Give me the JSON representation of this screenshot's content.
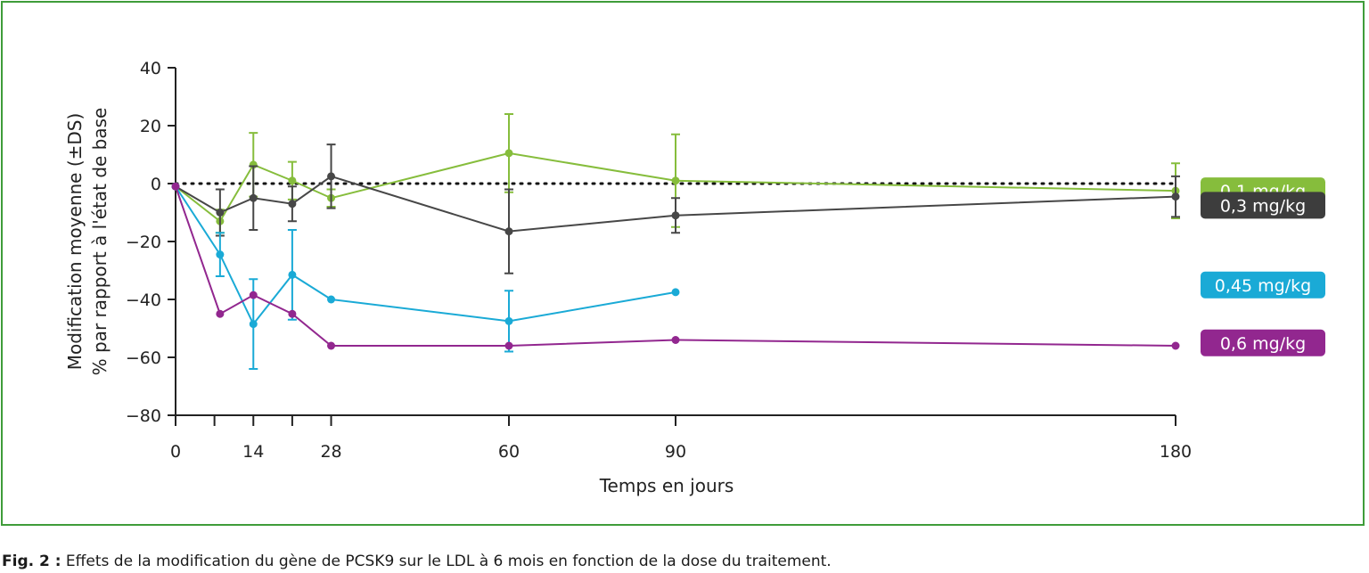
{
  "chart_data": {
    "type": "line",
    "xlabel": "Temps en jours",
    "ylabel": [
      "Modification moyenne (±DS)",
      "% par rapport à l'état de base"
    ],
    "xlim": [
      0,
      180
    ],
    "ylim": [
      -80,
      40
    ],
    "y_ticks": [
      40,
      20,
      0,
      -20,
      -40,
      -60,
      -80
    ],
    "x_ticks_all": [
      0,
      7,
      14,
      21,
      28,
      60,
      90,
      180
    ],
    "x_tick_labels": [
      {
        "x": 0,
        "label": "0"
      },
      {
        "x": 14,
        "label": "14"
      },
      {
        "x": 28,
        "label": "28"
      },
      {
        "x": 60,
        "label": "60"
      },
      {
        "x": 90,
        "label": "90"
      },
      {
        "x": 180,
        "label": "180"
      }
    ],
    "reference_line": {
      "y": 0,
      "style": "dotted"
    },
    "legend_placement": "right",
    "series": [
      {
        "name": "0,1 mg/kg",
        "color": "#86bd3c",
        "points": [
          {
            "x": 0,
            "y": -1
          },
          {
            "x": 8,
            "y": -13,
            "err": 4
          },
          {
            "x": 14,
            "y": 6.5,
            "err": 11
          },
          {
            "x": 21,
            "y": 1,
            "err": 6.5
          },
          {
            "x": 28,
            "y": -5,
            "err": 3
          },
          {
            "x": 60,
            "y": 10.5,
            "err": 13.5
          },
          {
            "x": 90,
            "y": 1,
            "err": 16
          },
          {
            "x": 180,
            "y": -2.5,
            "err": 9.5
          }
        ]
      },
      {
        "name": "0,3 mg/kg",
        "color": "#474747",
        "points": [
          {
            "x": 0,
            "y": -1
          },
          {
            "x": 8,
            "y": -10,
            "err": 8
          },
          {
            "x": 14,
            "y": -5,
            "err": 11
          },
          {
            "x": 21,
            "y": -7,
            "err": 6
          },
          {
            "x": 28,
            "y": 2.5,
            "err": 11
          },
          {
            "x": 60,
            "y": -16.5,
            "err": 14.5
          },
          {
            "x": 90,
            "y": -11,
            "err": 6
          },
          {
            "x": 180,
            "y": -4.5,
            "err": 7
          }
        ]
      },
      {
        "name": "0,45 mg/kg",
        "color": "#1aaad6",
        "points": [
          {
            "x": 0,
            "y": -1
          },
          {
            "x": 8,
            "y": -24.5,
            "err": 7.5
          },
          {
            "x": 14,
            "y": -48.5,
            "err": 15.5
          },
          {
            "x": 21,
            "y": -31.5,
            "err": 15.5
          },
          {
            "x": 28,
            "y": -40
          },
          {
            "x": 60,
            "y": -47.5,
            "err": 10.5
          },
          {
            "x": 90,
            "y": -37.5
          }
        ]
      },
      {
        "name": "0,6 mg/kg",
        "color": "#92278f",
        "points": [
          {
            "x": 0,
            "y": -1
          },
          {
            "x": 8,
            "y": -45
          },
          {
            "x": 14,
            "y": -38.5
          },
          {
            "x": 21,
            "y": -45
          },
          {
            "x": 28,
            "y": -56
          },
          {
            "x": 60,
            "y": -56
          },
          {
            "x": 90,
            "y": -54
          },
          {
            "x": 180,
            "y": -56
          }
        ]
      }
    ]
  },
  "legend": [
    {
      "label": "0,1 mg/kg",
      "color": "#86bd3c",
      "y": -2.5
    },
    {
      "label": "0,3 mg/kg",
      "color": "#3d3d3d",
      "y": -7.5
    },
    {
      "label": "0,45 mg/kg",
      "color": "#1aaad6",
      "y": -35
    },
    {
      "label": "0,6 mg/kg",
      "color": "#92278f",
      "y": -55
    }
  ],
  "caption": {
    "prefix": "Fig. 2 :",
    "text": " Effets de la modification du gène de PCSK9 sur le LDL à 6 mois en fonction de la dose du traitement."
  }
}
